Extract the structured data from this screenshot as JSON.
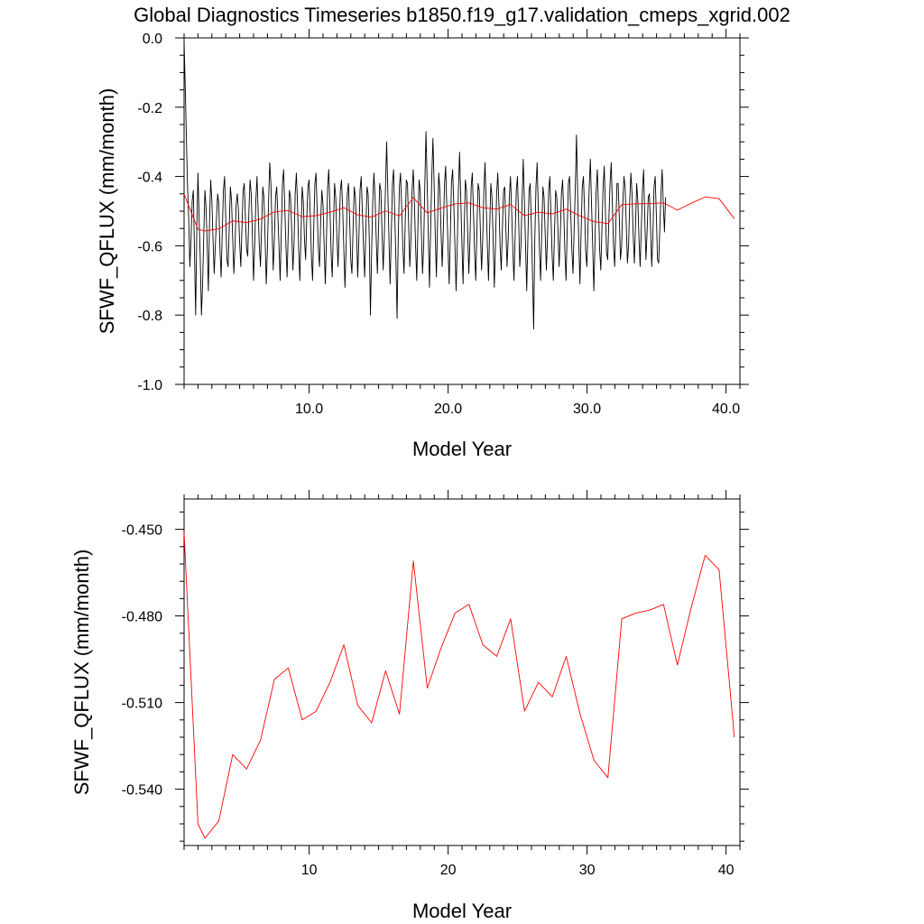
{
  "title": "Global Diagnostics Timeseries b1850.f19_g17.validation_cmeps_xgrid.002",
  "chart_data": [
    {
      "type": "line",
      "xlabel": "Model Year",
      "ylabel": "SFWF_QFLUX (mm/month)",
      "xlim": [
        1,
        41
      ],
      "ylim": [
        -1.0,
        0.0
      ],
      "x_ticks": [
        10,
        20,
        30,
        40
      ],
      "x_tick_labels": [
        "10.0",
        "20.0",
        "30.0",
        "40.0"
      ],
      "y_ticks": [
        0.0,
        -0.2,
        -0.4,
        -0.6,
        -0.8,
        -1.0
      ],
      "y_tick_labels": [
        "0.0",
        "-0.2",
        "-0.4",
        "-0.6",
        "-0.8",
        "-1.0"
      ],
      "grid": false,
      "series": [
        {
          "color": "#000000",
          "x_start": 1.0,
          "x_step": 0.0833,
          "values": [
            -0.01,
            -0.14,
            -0.29,
            -0.43,
            -0.52,
            -0.66,
            -0.58,
            -0.47,
            -0.44,
            -0.62,
            -0.8,
            -0.55,
            -0.39,
            -0.52,
            -0.64,
            -0.8,
            -0.71,
            -0.57,
            -0.44,
            -0.49,
            -0.6,
            -0.73,
            -0.53,
            -0.41,
            -0.47,
            -0.58,
            -0.68,
            -0.6,
            -0.52,
            -0.45,
            -0.48,
            -0.61,
            -0.69,
            -0.56,
            -0.44,
            -0.4,
            -0.52,
            -0.64,
            -0.66,
            -0.55,
            -0.43,
            -0.47,
            -0.58,
            -0.68,
            -0.6,
            -0.48,
            -0.45,
            -0.5,
            -0.59,
            -0.66,
            -0.55,
            -0.44,
            -0.42,
            -0.52,
            -0.61,
            -0.63,
            -0.5,
            -0.41,
            -0.45,
            -0.57,
            -0.7,
            -0.6,
            -0.47,
            -0.4,
            -0.5,
            -0.6,
            -0.66,
            -0.54,
            -0.43,
            -0.46,
            -0.58,
            -0.71,
            -0.61,
            -0.47,
            -0.36,
            -0.42,
            -0.55,
            -0.67,
            -0.58,
            -0.46,
            -0.43,
            -0.51,
            -0.6,
            -0.7,
            -0.56,
            -0.42,
            -0.38,
            -0.49,
            -0.6,
            -0.69,
            -0.56,
            -0.44,
            -0.46,
            -0.56,
            -0.67,
            -0.59,
            -0.45,
            -0.39,
            -0.48,
            -0.61,
            -0.7,
            -0.57,
            -0.43,
            -0.47,
            -0.58,
            -0.64,
            -0.52,
            -0.43,
            -0.41,
            -0.51,
            -0.63,
            -0.7,
            -0.55,
            -0.42,
            -0.39,
            -0.5,
            -0.61,
            -0.66,
            -0.53,
            -0.44,
            -0.48,
            -0.6,
            -0.71,
            -0.58,
            -0.43,
            -0.38,
            -0.49,
            -0.62,
            -0.69,
            -0.55,
            -0.42,
            -0.46,
            -0.57,
            -0.66,
            -0.56,
            -0.44,
            -0.41,
            -0.49,
            -0.61,
            -0.72,
            -0.6,
            -0.45,
            -0.42,
            -0.52,
            -0.64,
            -0.68,
            -0.55,
            -0.43,
            -0.46,
            -0.56,
            -0.69,
            -0.58,
            -0.44,
            -0.4,
            -0.5,
            -0.6,
            -0.69,
            -0.56,
            -0.43,
            -0.45,
            -0.58,
            -0.8,
            -0.62,
            -0.47,
            -0.39,
            -0.46,
            -0.58,
            -0.68,
            -0.55,
            -0.42,
            -0.44,
            -0.56,
            -0.67,
            -0.57,
            -0.43,
            -0.3,
            -0.44,
            -0.58,
            -0.71,
            -0.57,
            -0.42,
            -0.38,
            -0.51,
            -0.64,
            -0.81,
            -0.58,
            -0.43,
            -0.39,
            -0.49,
            -0.6,
            -0.68,
            -0.54,
            -0.41,
            -0.42,
            -0.54,
            -0.66,
            -0.58,
            -0.44,
            -0.38,
            -0.48,
            -0.6,
            -0.7,
            -0.55,
            -0.41,
            -0.44,
            -0.56,
            -0.68,
            -0.6,
            -0.42,
            -0.27,
            -0.42,
            -0.57,
            -0.72,
            -0.55,
            -0.4,
            -0.29,
            -0.42,
            -0.57,
            -0.69,
            -0.53,
            -0.39,
            -0.44,
            -0.56,
            -0.66,
            -0.55,
            -0.42,
            -0.37,
            -0.49,
            -0.6,
            -0.71,
            -0.57,
            -0.42,
            -0.38,
            -0.48,
            -0.6,
            -0.73,
            -0.6,
            -0.44,
            -0.33,
            -0.46,
            -0.59,
            -0.71,
            -0.55,
            -0.41,
            -0.44,
            -0.56,
            -0.68,
            -0.58,
            -0.43,
            -0.39,
            -0.5,
            -0.62,
            -0.7,
            -0.55,
            -0.42,
            -0.44,
            -0.56,
            -0.67,
            -0.58,
            -0.44,
            -0.36,
            -0.48,
            -0.6,
            -0.7,
            -0.55,
            -0.42,
            -0.46,
            -0.58,
            -0.72,
            -0.6,
            -0.45,
            -0.39,
            -0.48,
            -0.6,
            -0.67,
            -0.55,
            -0.44,
            -0.43,
            -0.55,
            -0.66,
            -0.58,
            -0.46,
            -0.4,
            -0.5,
            -0.61,
            -0.7,
            -0.57,
            -0.44,
            -0.4,
            -0.52,
            -0.66,
            -0.6,
            -0.47,
            -0.35,
            -0.47,
            -0.6,
            -0.73,
            -0.58,
            -0.44,
            -0.42,
            -0.54,
            -0.68,
            -0.84,
            -0.58,
            -0.43,
            -0.36,
            -0.49,
            -0.61,
            -0.7,
            -0.56,
            -0.43,
            -0.46,
            -0.57,
            -0.67,
            -0.57,
            -0.44,
            -0.4,
            -0.52,
            -0.63,
            -0.7,
            -0.56,
            -0.44,
            -0.46,
            -0.56,
            -0.66,
            -0.57,
            -0.45,
            -0.41,
            -0.5,
            -0.62,
            -0.7,
            -0.55,
            -0.42,
            -0.4,
            -0.5,
            -0.61,
            -0.68,
            -0.55,
            -0.43,
            -0.28,
            -0.45,
            -0.59,
            -0.71,
            -0.56,
            -0.43,
            -0.4,
            -0.5,
            -0.62,
            -0.66,
            -0.54,
            -0.43,
            -0.35,
            -0.48,
            -0.6,
            -0.73,
            -0.59,
            -0.44,
            -0.38,
            -0.49,
            -0.61,
            -0.67,
            -0.55,
            -0.43,
            -0.37,
            -0.5,
            -0.62,
            -0.64,
            -0.52,
            -0.42,
            -0.36,
            -0.48,
            -0.6,
            -0.66,
            -0.54,
            -0.42,
            -0.42,
            -0.52,
            -0.64,
            -0.6,
            -0.48,
            -0.4,
            -0.43,
            -0.54,
            -0.65,
            -0.6,
            -0.47,
            -0.39,
            -0.45,
            -0.57,
            -0.65,
            -0.54,
            -0.42,
            -0.47,
            -0.58,
            -0.66,
            -0.55,
            -0.44,
            -0.38,
            -0.52,
            -0.64,
            -0.56,
            -0.46,
            -0.45,
            -0.55,
            -0.66,
            -0.57,
            -0.43,
            -0.4,
            -0.51,
            -0.64,
            -0.65,
            -0.55,
            -0.45,
            -0.38,
            -0.48,
            -0.56,
            -0.46
          ]
        },
        {
          "color": "#ff0000",
          "x": [
            1.0,
            2.0,
            2.5,
            3.5,
            4.5,
            5.5,
            6.5,
            7.5,
            8.5,
            9.5,
            10.5,
            11.5,
            12.5,
            13.5,
            14.5,
            15.5,
            16.5,
            17.5,
            18.5,
            19.5,
            20.5,
            21.5,
            22.5,
            23.5,
            24.5,
            25.5,
            26.5,
            27.5,
            28.5,
            29.5,
            30.5,
            31.5,
            32.5,
            33.5,
            34.5,
            35.5,
            36.5,
            37.5,
            38.5,
            39.5,
            40.6
          ],
          "values": [
            -0.451,
            -0.552,
            -0.557,
            -0.551,
            -0.528,
            -0.533,
            -0.523,
            -0.502,
            -0.498,
            -0.516,
            -0.513,
            -0.503,
            -0.49,
            -0.511,
            -0.517,
            -0.499,
            -0.514,
            -0.461,
            -0.505,
            -0.491,
            -0.479,
            -0.476,
            -0.49,
            -0.494,
            -0.481,
            -0.513,
            -0.503,
            -0.508,
            -0.494,
            -0.514,
            -0.53,
            -0.536,
            -0.481,
            -0.479,
            -0.478,
            -0.476,
            -0.497,
            -0.477,
            -0.459,
            -0.464,
            -0.522
          ]
        }
      ]
    },
    {
      "type": "line",
      "xlabel": "Model Year",
      "ylabel": "SFWF_QFLUX (mm/month)",
      "xlim": [
        1,
        41
      ],
      "ylim": [
        -0.5595,
        -0.4395
      ],
      "x_ticks": [
        10,
        20,
        30,
        40
      ],
      "x_tick_labels": [
        "10",
        "20",
        "30",
        "40"
      ],
      "y_ticks": [
        -0.45,
        -0.48,
        -0.51,
        -0.54
      ],
      "y_tick_labels": [
        "-0.450",
        "-0.480",
        "-0.510",
        "-0.540"
      ],
      "grid": false,
      "series": [
        {
          "color": "#ff0000",
          "x": [
            1.0,
            2.0,
            2.5,
            3.5,
            4.5,
            5.5,
            6.5,
            7.5,
            8.5,
            9.5,
            10.5,
            11.5,
            12.5,
            13.5,
            14.5,
            15.5,
            16.5,
            17.5,
            18.5,
            19.5,
            20.5,
            21.5,
            22.5,
            23.5,
            24.5,
            25.5,
            26.5,
            27.5,
            28.5,
            29.5,
            30.5,
            31.5,
            32.5,
            33.5,
            34.5,
            35.5,
            36.5,
            37.5,
            38.5,
            39.5,
            40.6
          ],
          "values": [
            -0.451,
            -0.552,
            -0.557,
            -0.551,
            -0.528,
            -0.533,
            -0.523,
            -0.502,
            -0.498,
            -0.516,
            -0.513,
            -0.503,
            -0.49,
            -0.511,
            -0.517,
            -0.499,
            -0.514,
            -0.461,
            -0.505,
            -0.491,
            -0.479,
            -0.476,
            -0.49,
            -0.494,
            -0.481,
            -0.513,
            -0.503,
            -0.508,
            -0.494,
            -0.514,
            -0.53,
            -0.536,
            -0.481,
            -0.479,
            -0.478,
            -0.476,
            -0.497,
            -0.477,
            -0.459,
            -0.464,
            -0.522
          ]
        }
      ]
    }
  ]
}
